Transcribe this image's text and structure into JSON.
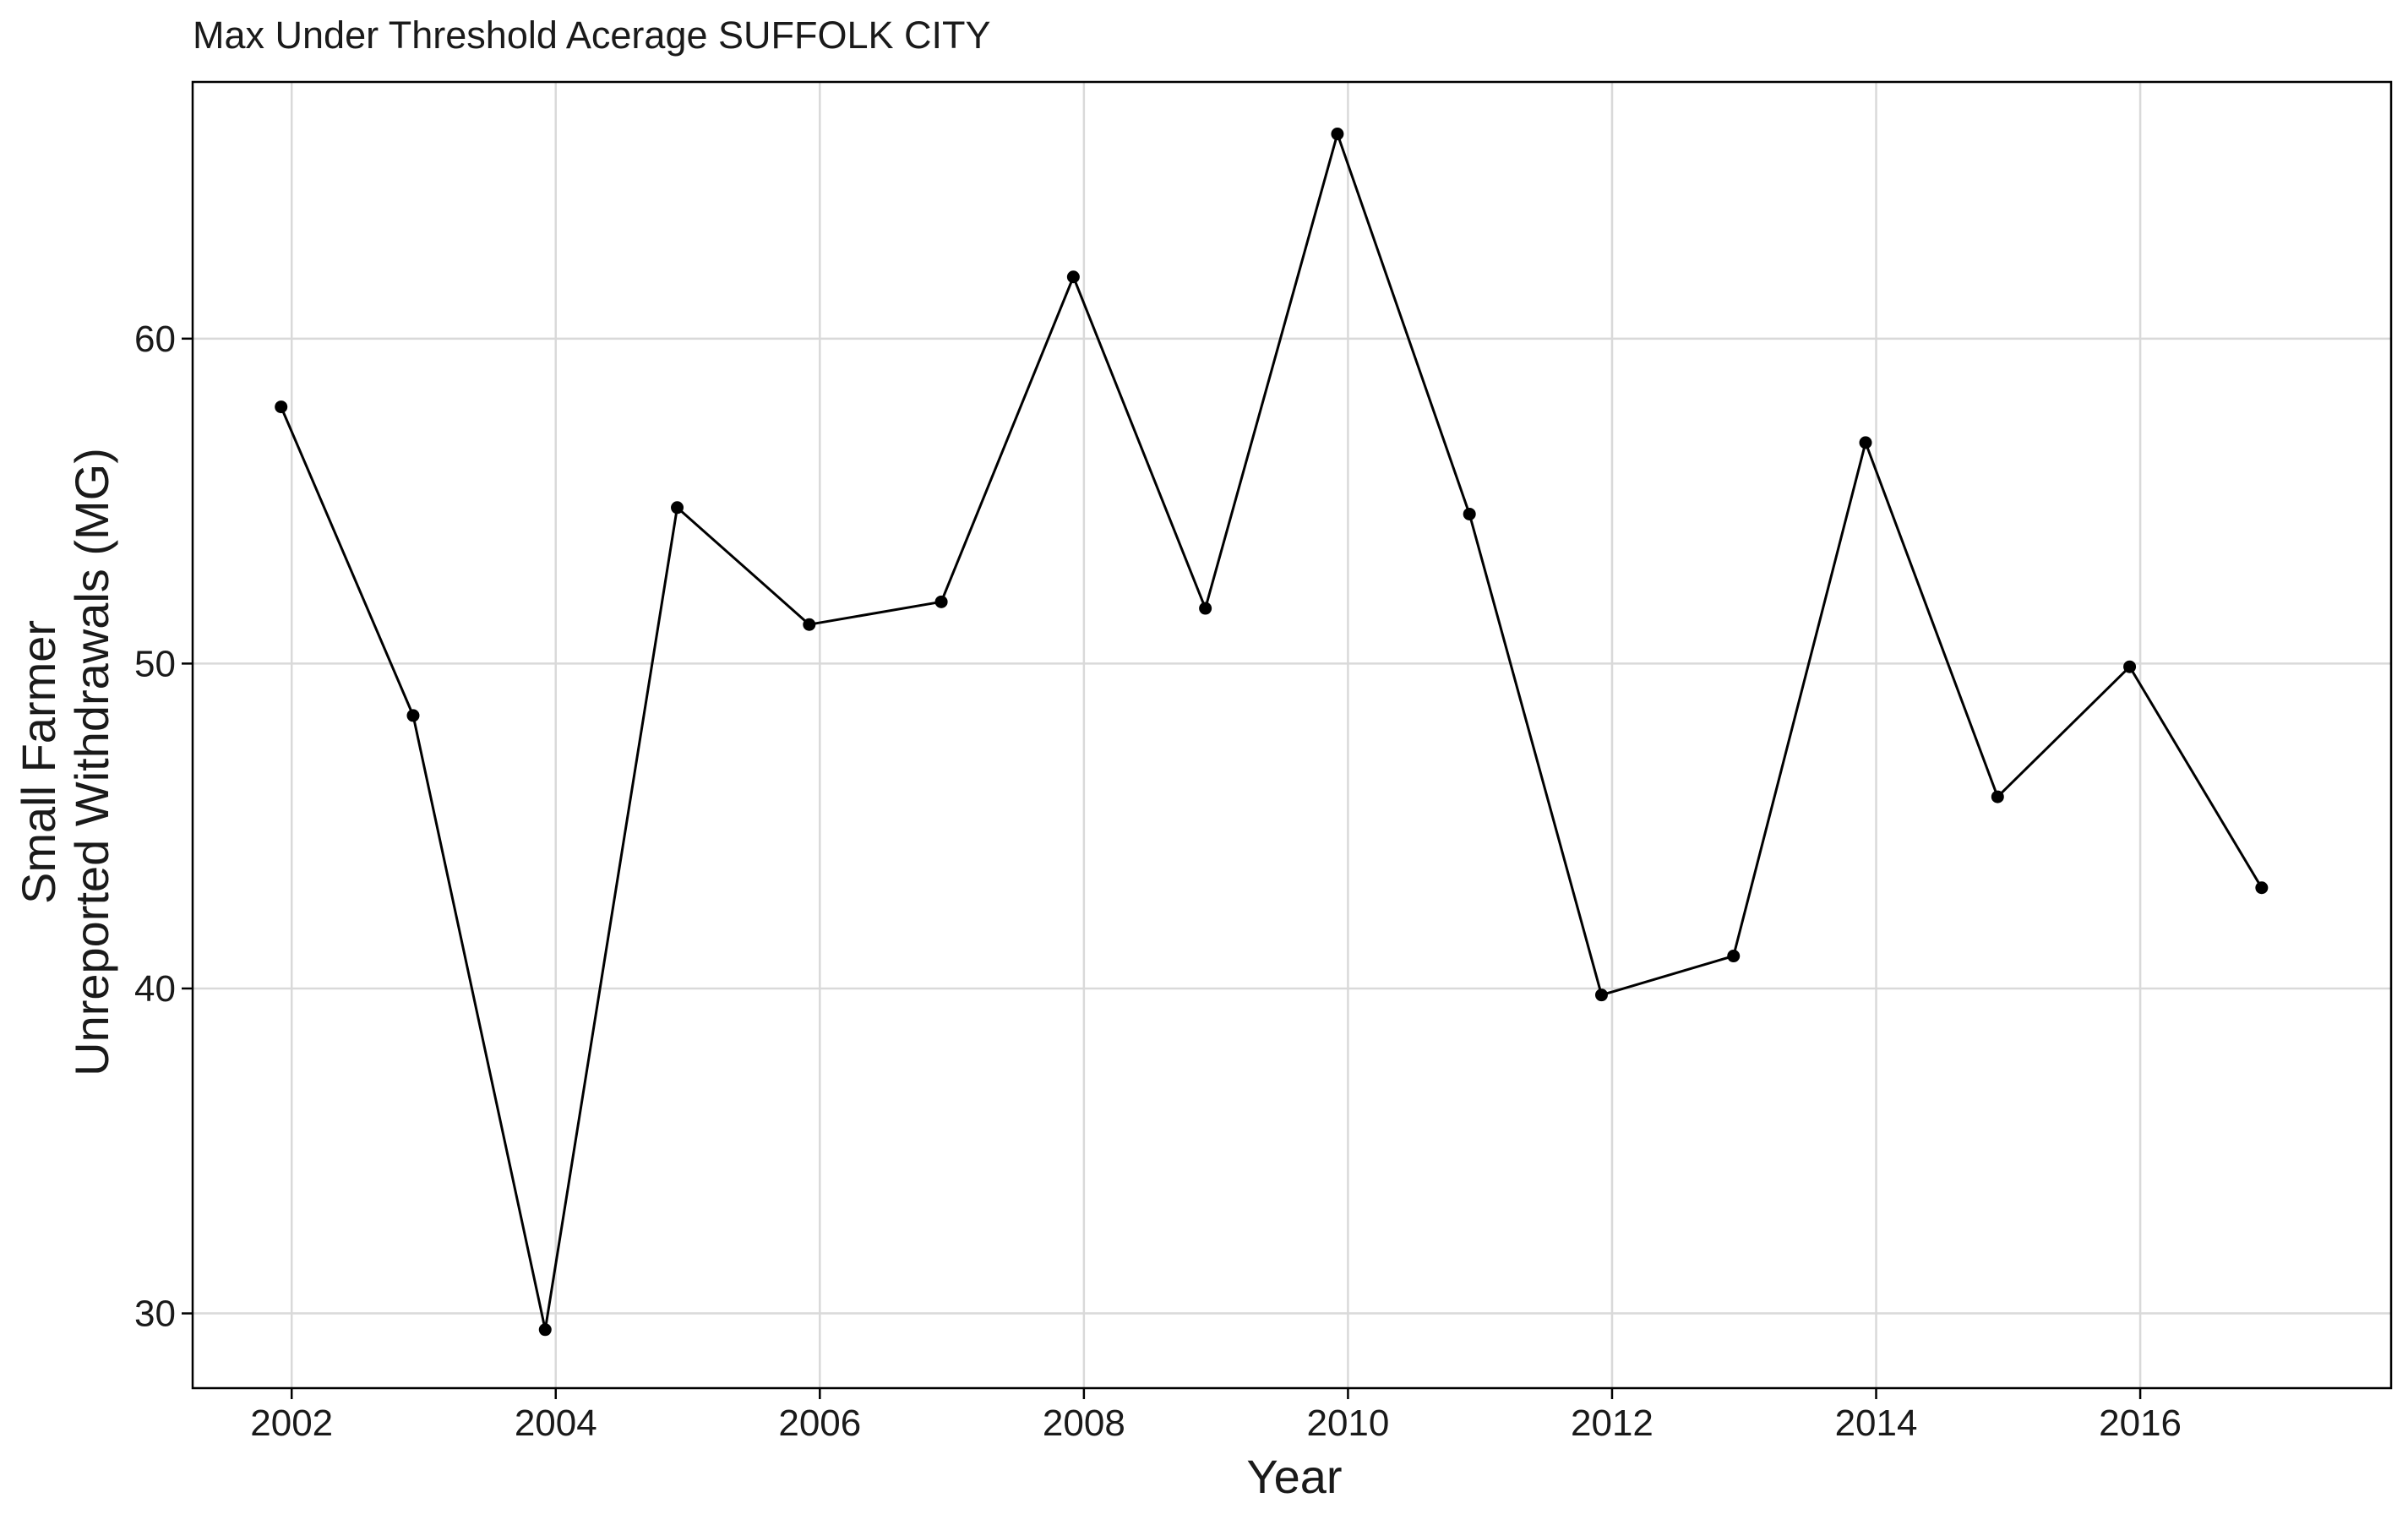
{
  "chart_data": {
    "type": "line",
    "title": "Max Under Threshold Acerage SUFFOLK CITY",
    "xlabel": "Year",
    "ylabel_lines": [
      "Small Farmer",
      "Unreported Withdrawals (MG)"
    ],
    "xlim": [
      2001.25,
      2017.9
    ],
    "ylim": [
      27.7,
      67.9
    ],
    "x_ticks": [
      2002,
      2004,
      2006,
      2008,
      2010,
      2012,
      2014,
      2016
    ],
    "y_ticks": [
      30,
      40,
      50,
      60
    ],
    "grid": true,
    "legend": "none",
    "colors": {
      "line": "#000000",
      "grid": "#d9d9d9",
      "axis": "#000000",
      "text": "#1a1a1a",
      "background": "#ffffff"
    },
    "series": [
      {
        "x": [
          2001.92,
          2002.92,
          2003.92,
          2004.92,
          2005.92,
          2006.92,
          2007.92,
          2008.92,
          2009.92,
          2010.92,
          2011.92,
          2012.92,
          2013.92,
          2014.92,
          2015.92,
          2016.92
        ],
        "values": [
          57.9,
          48.4,
          29.5,
          54.8,
          51.2,
          51.9,
          61.9,
          51.7,
          66.3,
          54.6,
          39.8,
          41.0,
          56.8,
          45.9,
          49.9,
          43.1
        ]
      }
    ]
  }
}
